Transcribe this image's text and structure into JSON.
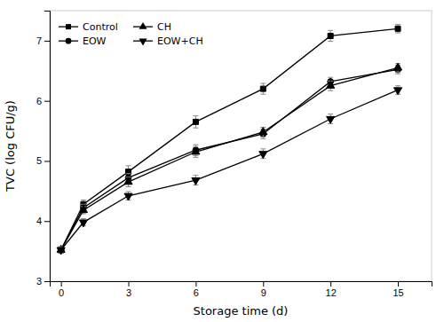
{
  "chart_data": {
    "type": "line",
    "x": [
      0,
      1,
      3,
      6,
      9,
      12,
      15
    ],
    "series": [
      {
        "name": "Control",
        "values": [
          3.52,
          4.28,
          4.82,
          5.65,
          6.2,
          7.08,
          7.2
        ],
        "errors": [
          0.05,
          0.07,
          0.1,
          0.1,
          0.09,
          0.09,
          0.07
        ],
        "marker": "square"
      },
      {
        "name": "EOW",
        "values": [
          3.52,
          4.22,
          4.72,
          5.18,
          5.45,
          6.32,
          6.52
        ],
        "errors": [
          0.05,
          0.06,
          0.07,
          0.09,
          0.08,
          0.07,
          0.07
        ],
        "marker": "circle"
      },
      {
        "name": "CH",
        "values": [
          3.52,
          4.18,
          4.65,
          5.15,
          5.48,
          6.25,
          6.55
        ],
        "errors": [
          0.05,
          0.06,
          0.08,
          0.09,
          0.08,
          0.08,
          0.07
        ],
        "marker": "triangle-up"
      },
      {
        "name": "EOW+CH",
        "values": [
          3.52,
          3.98,
          4.42,
          4.68,
          5.12,
          5.7,
          6.18
        ],
        "errors": [
          0.05,
          0.06,
          0.07,
          0.08,
          0.08,
          0.08,
          0.07
        ],
        "marker": "triangle-down"
      }
    ],
    "color": "#000000",
    "xlabel": "Storage time (d)",
    "ylabel": "TVC (log CFU/g)",
    "xlim": [
      -0.5,
      16.5
    ],
    "ylim": [
      3,
      7.5
    ],
    "xticks": [
      0,
      3,
      6,
      9,
      12,
      15
    ],
    "yticks": [
      3,
      4,
      5,
      6,
      7
    ],
    "legend": "upper-left"
  }
}
